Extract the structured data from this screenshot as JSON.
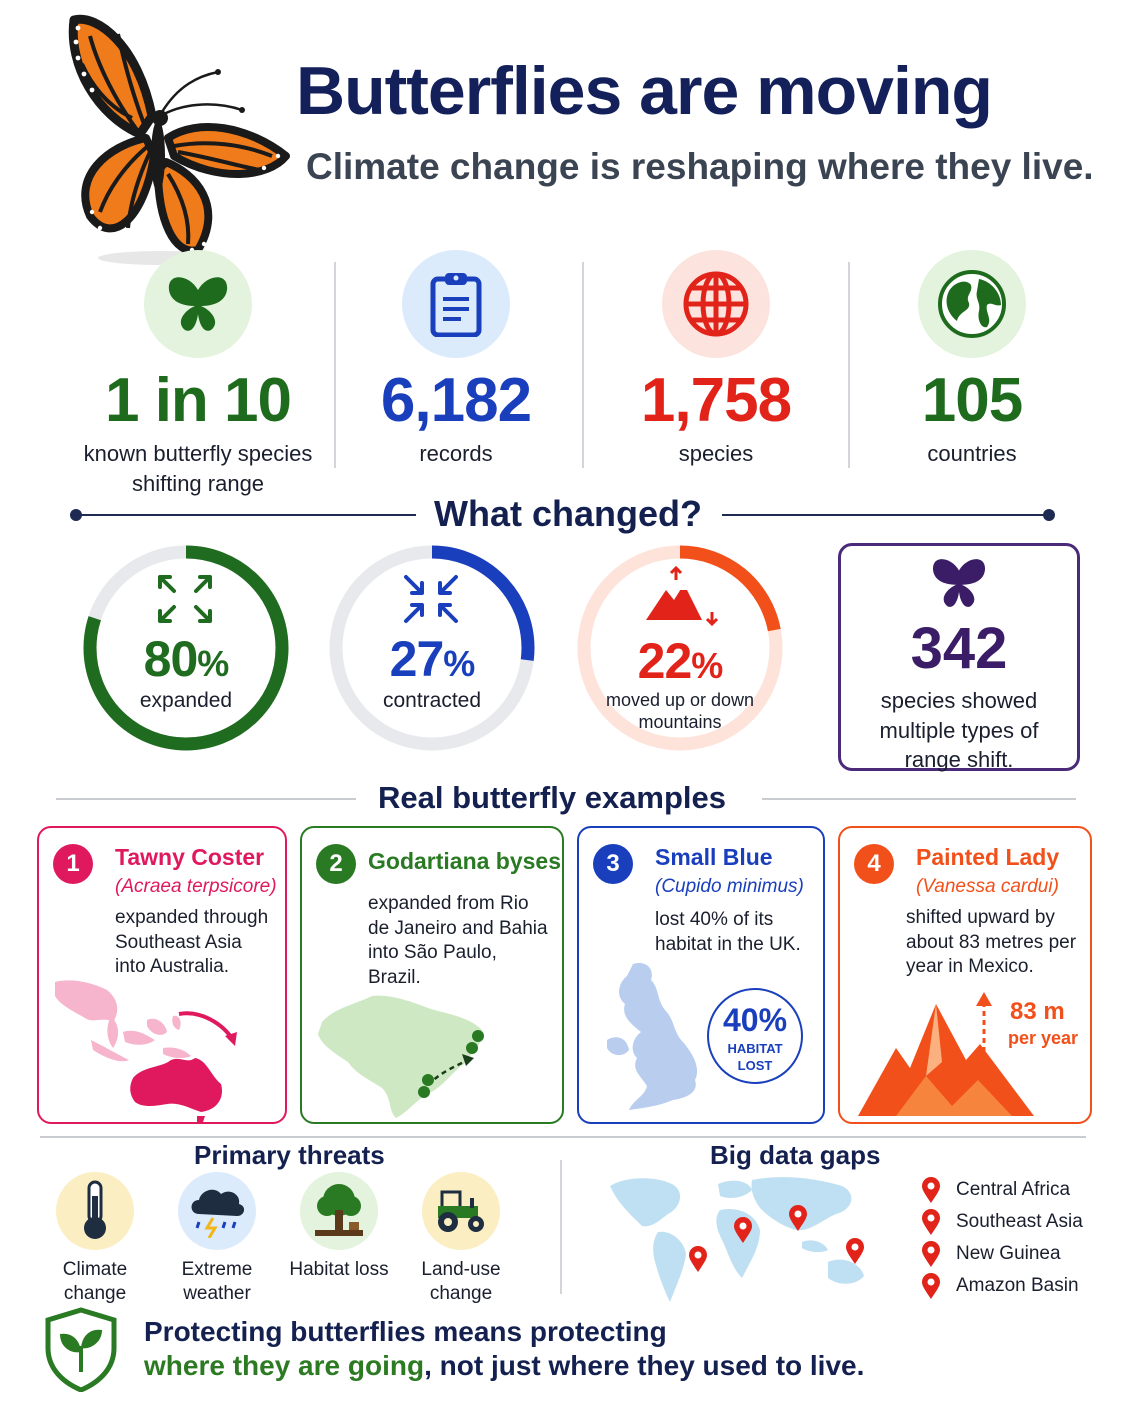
{
  "header": {
    "title": "Butterflies are moving",
    "subtitle": "Climate change is reshaping where they live."
  },
  "stats": [
    {
      "value": "1 in 10",
      "label": "known butterfly species shifting range",
      "icon": "butterfly-icon",
      "color": "#1e6b1e",
      "bg": "#e3f3dd"
    },
    {
      "value": "6,182",
      "label": "records",
      "icon": "clipboard-icon",
      "color": "#1a3fbd",
      "bg": "#dcebfb"
    },
    {
      "value": "1,758",
      "label": "species",
      "icon": "globe-grid-icon",
      "color": "#e2231a",
      "bg": "#fde3de"
    },
    {
      "value": "105",
      "label": "countries",
      "icon": "earth-icon",
      "color": "#1e6b1e",
      "bg": "#e3f3dd"
    }
  ],
  "changes": {
    "title": "What changed?",
    "items": [
      {
        "value": "80",
        "unit": "%",
        "label": "expanded",
        "fraction": 0.8,
        "color": "#1f6b1f",
        "icon": "expand-arrows-icon"
      },
      {
        "value": "27",
        "unit": "%",
        "label": "contracted",
        "fraction": 0.27,
        "color": "#1a3fbd",
        "icon": "contract-arrows-icon"
      },
      {
        "value": "22",
        "unit": "%",
        "label": "moved up or down mountains",
        "fraction": 0.22,
        "color": "#f2501b",
        "icon": "mountain-arrows-icon"
      }
    ],
    "multi": {
      "value": "342",
      "label": "species showed multiple types of range shift.",
      "icon": "butterfly-icon",
      "color": "#3a1d66"
    }
  },
  "examples": {
    "title": "Real butterfly examples",
    "cards": [
      {
        "num": "1",
        "name": "Tawny Coster",
        "sci": "(Acraea terpsicore)",
        "desc": "expanded through Southeast Asia into Australia.",
        "color": "#e0195e",
        "map": "southeast-asia-australia-map"
      },
      {
        "num": "2",
        "name": "Godartiana byses",
        "sci": "",
        "desc": "expanded from Rio de Janeiro and Bahia into São Paulo, Brazil.",
        "color": "#2a7a24",
        "map": "brazil-map"
      },
      {
        "num": "3",
        "name": "Small Blue",
        "sci": "(Cupido minimus)",
        "desc": "lost 40% of its habitat in the UK.",
        "color": "#1a3fbd",
        "map": "uk-map",
        "stamp_value": "40%",
        "stamp_label": "HABITAT LOST"
      },
      {
        "num": "4",
        "name": "Painted Lady",
        "sci": "(Vanessa cardui)",
        "desc": "shifted upward by about 83 metres per year in Mexico.",
        "color": "#f2501b",
        "map": "mountain-illustration",
        "rise_value": "83 m",
        "rise_unit": "per year"
      }
    ]
  },
  "threats": {
    "title": "Primary threats",
    "items": [
      {
        "label": "Climate change",
        "icon": "thermometer-icon",
        "bg": "#fbeec2"
      },
      {
        "label": "Extreme weather",
        "icon": "storm-cloud-icon",
        "bg": "#dcebfb"
      },
      {
        "label": "Habitat loss",
        "icon": "tree-stump-icon",
        "bg": "#e3f3dd"
      },
      {
        "label": "Land-use change",
        "icon": "tractor-icon",
        "bg": "#fbeec2"
      }
    ]
  },
  "gaps": {
    "title": "Big data gaps",
    "regions": [
      "Central Africa",
      "Southeast Asia",
      "New Guinea",
      "Amazon Basin"
    ]
  },
  "footer": {
    "line1": "Protecting butterflies means protecting",
    "line2_highlight": "where they are going",
    "line2_rest": ", not just where they used to live."
  }
}
